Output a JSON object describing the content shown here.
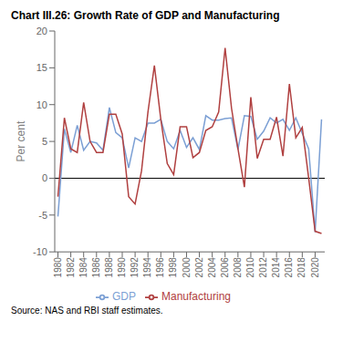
{
  "chart_data": {
    "type": "line",
    "title": "Chart III.26: Growth Rate of GDP and Manufacturing",
    "y_label": "Per cent",
    "annotations": [
      "Source: NAS and RBI staff estimates."
    ],
    "x": [
      1980,
      1981,
      1982,
      1983,
      1984,
      1985,
      1986,
      1987,
      1988,
      1989,
      1990,
      1991,
      1992,
      1993,
      1994,
      1995,
      1996,
      1997,
      1998,
      1999,
      2000,
      2001,
      2002,
      2003,
      2004,
      2005,
      2006,
      2007,
      2008,
      2009,
      2010,
      2011,
      2012,
      2013,
      2014,
      2015,
      2016,
      2017,
      2018,
      2019,
      2020,
      2021
    ],
    "series": [
      {
        "name": "GDP",
        "color": "#7b9fd4",
        "values": [
          -5.2,
          6.7,
          3.5,
          7.2,
          3.8,
          5.0,
          4.8,
          3.8,
          9.6,
          6.2,
          5.5,
          1.4,
          5.5,
          5.0,
          7.5,
          7.5,
          8.0,
          5.0,
          4.0,
          6.5,
          4.2,
          5.5,
          3.9,
          8.5,
          7.9,
          7.9,
          8.1,
          8.2,
          3.9,
          8.5,
          8.4,
          5.3,
          6.4,
          8.2,
          7.5,
          8.0,
          6.5,
          8.2,
          6.1,
          4.0,
          -7.3,
          8.0
        ]
      },
      {
        "name": "Manufacturing",
        "color": "#b04040",
        "values": [
          -2.5,
          8.2,
          4.0,
          3.5,
          10.3,
          5.0,
          3.5,
          3.5,
          8.7,
          8.7,
          6.0,
          -2.5,
          -3.5,
          1.0,
          9.0,
          15.3,
          8.0,
          2.0,
          0.5,
          7.0,
          7.0,
          2.8,
          3.5,
          6.5,
          7.0,
          9.0,
          17.7,
          9.5,
          4.0,
          -1.2,
          11.0,
          2.7,
          5.3,
          5.3,
          8.3,
          3.0,
          12.8,
          5.5,
          6.9,
          0.0,
          -7.2,
          -7.5
        ]
      }
    ],
    "xlim": [
      1979.5,
      2021.5
    ],
    "xticks": [
      1980,
      1982,
      1984,
      1986,
      1988,
      1990,
      1992,
      1994,
      1996,
      1998,
      2000,
      2002,
      2004,
      2006,
      2008,
      2010,
      2012,
      2014,
      2016,
      2018,
      2020
    ],
    "ylim": [
      -10,
      20
    ],
    "yticks": [
      -10,
      -5,
      0,
      5,
      10,
      15,
      20
    ],
    "hlines": [
      0
    ],
    "grid": false,
    "legend": "bottom"
  }
}
